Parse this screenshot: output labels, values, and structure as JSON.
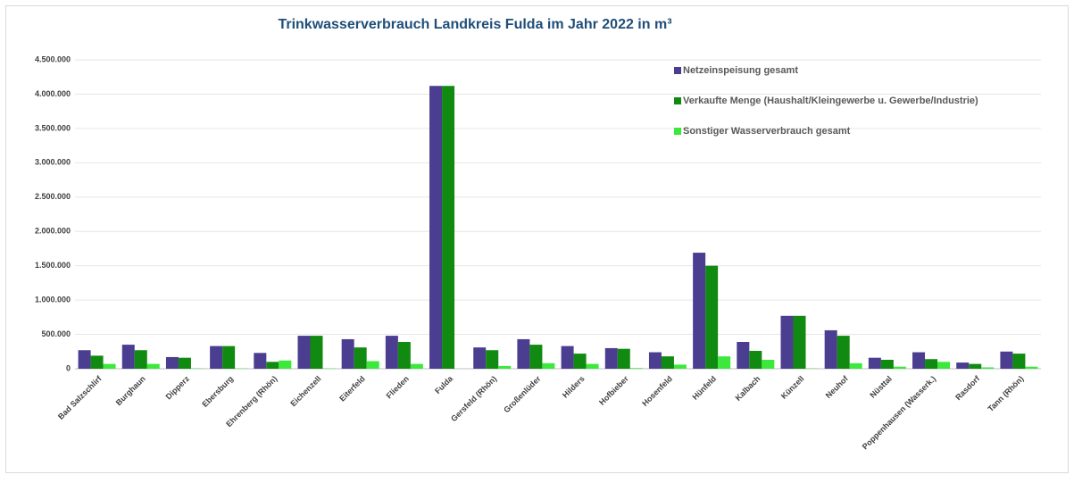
{
  "chart_data": {
    "type": "bar",
    "title": "Trinkwasserverbrauch Landkreis Fulda im Jahr 2022 in m³",
    "categories": [
      "Bad Salzschlirf",
      "Burghaun",
      "Dipperz",
      "Ebersburg",
      "Ehrenberg (Rhön)",
      "Eichenzell",
      "Eiterfeld",
      "Flieden",
      "Fulda",
      "Gersfeld (Rhön)",
      "Großenlüder",
      "Hilders",
      "Hofbieber",
      "Hosenfeld",
      "Hünfeld",
      "Kalbach",
      "Künzell",
      "Neuhof",
      "Nüsttal",
      "Poppenhausen (Wasserk.)",
      "Rasdorf",
      "Tann (Rhön)"
    ],
    "series": [
      {
        "name": "Netzeinspeisung gesamt",
        "color": "#4b3d8f",
        "values": [
          270000,
          350000,
          170000,
          330000,
          230000,
          480000,
          430000,
          480000,
          4120000,
          310000,
          430000,
          330000,
          300000,
          240000,
          1690000,
          390000,
          770000,
          560000,
          160000,
          240000,
          90000,
          250000
        ]
      },
      {
        "name": "Verkaufte Menge (Haushalt/Kleingewerbe u. Gewerbe/Industrie)",
        "color": "#108a10",
        "values": [
          190000,
          270000,
          160000,
          330000,
          100000,
          480000,
          310000,
          390000,
          4120000,
          270000,
          350000,
          220000,
          290000,
          180000,
          1500000,
          260000,
          770000,
          480000,
          130000,
          140000,
          70000,
          220000
        ]
      },
      {
        "name": "Sonstiger Wasserverbrauch gesamt",
        "color": "#3de83d",
        "values": [
          70000,
          70000,
          5000,
          5000,
          120000,
          5000,
          110000,
          70000,
          0,
          40000,
          80000,
          70000,
          10000,
          60000,
          180000,
          130000,
          5000,
          80000,
          30000,
          100000,
          20000,
          30000
        ]
      }
    ],
    "ylim": [
      0,
      4500000
    ],
    "yticks": [
      0,
      {
        "value": 500000,
        "label": "500.000"
      },
      {
        "value": 1000000,
        "label": "1.000.000"
      },
      {
        "value": 1500000,
        "label": "1.500.000"
      },
      {
        "value": 2000000,
        "label": "2.000.000"
      },
      {
        "value": 2500000,
        "label": "2.500.000"
      },
      {
        "value": 3000000,
        "label": "3.000.000"
      },
      {
        "value": 3500000,
        "label": "3.500.000"
      },
      {
        "value": 4000000,
        "label": "4.000.000"
      },
      {
        "value": 4500000,
        "label": "4.500.000"
      }
    ],
    "grid": true
  }
}
